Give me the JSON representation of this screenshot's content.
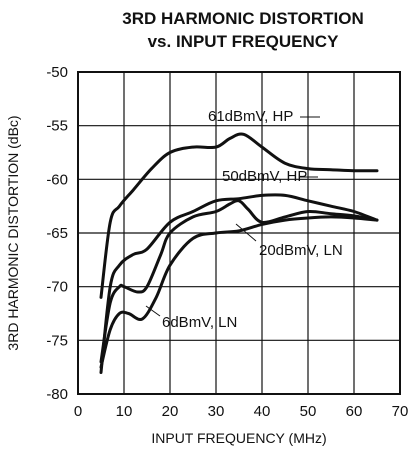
{
  "chart_data": {
    "type": "line",
    "title_line1": "3RD HARMONIC DISTORTION",
    "title_line2": "vs. INPUT FREQUENCY",
    "xlabel": "INPUT FREQUENCY (MHz)",
    "ylabel": "3RD HARMONIC DISTORTION (dBc)",
    "xlim": [
      0,
      70
    ],
    "ylim": [
      -80,
      -50
    ],
    "xticks": [
      0,
      10,
      20,
      30,
      40,
      50,
      60,
      70
    ],
    "yticks": [
      -50,
      -55,
      -60,
      -65,
      -70,
      -75,
      -80
    ],
    "grid": true,
    "series": [
      {
        "name": "61dBmV, HP",
        "x": [
          5,
          7,
          9,
          12,
          16,
          20,
          25,
          30,
          33,
          36,
          40,
          45,
          50,
          55,
          60,
          65
        ],
        "y": [
          -71,
          -64,
          -62.5,
          -61,
          -59,
          -57.5,
          -57,
          -57,
          -56.2,
          -55.8,
          -57,
          -58.5,
          -59,
          -59.1,
          -59.2,
          -59.2
        ]
      },
      {
        "name": "50dBmV, HP",
        "x": [
          5,
          7,
          9,
          12,
          15,
          20,
          25,
          30,
          35,
          40,
          45,
          50,
          55,
          60,
          65
        ],
        "y": [
          -78,
          -70,
          -68,
          -67,
          -66.5,
          -64,
          -63,
          -62,
          -61.8,
          -61.5,
          -61.5,
          -62,
          -62.5,
          -63,
          -63.8
        ]
      },
      {
        "name": "20dBmV, LN",
        "x": [
          5,
          7,
          9,
          10,
          13,
          15,
          18,
          20,
          25,
          30,
          33,
          35,
          37,
          40,
          45,
          50,
          55,
          60,
          65
        ],
        "y": [
          -77,
          -71.5,
          -70,
          -70,
          -70.5,
          -70,
          -67,
          -65,
          -63.5,
          -63,
          -62.3,
          -62,
          -62.8,
          -64,
          -63.5,
          -63,
          -63.2,
          -63.4,
          -63.8
        ]
      },
      {
        "name": "6dBmV, LN",
        "x": [
          5,
          7,
          9,
          11,
          14,
          17,
          20,
          25,
          30,
          35,
          40,
          45,
          50,
          55,
          60,
          65
        ],
        "y": [
          -77.5,
          -74,
          -72.5,
          -72.5,
          -73,
          -71,
          -68,
          -65.5,
          -65,
          -64.8,
          -64.2,
          -63.8,
          -63.6,
          -63.5,
          -63.6,
          -63.8
        ]
      }
    ],
    "annotations": [
      {
        "text": "61dBmV, HP",
        "series": 0
      },
      {
        "text": "50dBmV, HP",
        "series": 1
      },
      {
        "text": "20dBmV, LN",
        "series": 2
      },
      {
        "text": "6dBmV, LN",
        "series": 3
      }
    ]
  }
}
